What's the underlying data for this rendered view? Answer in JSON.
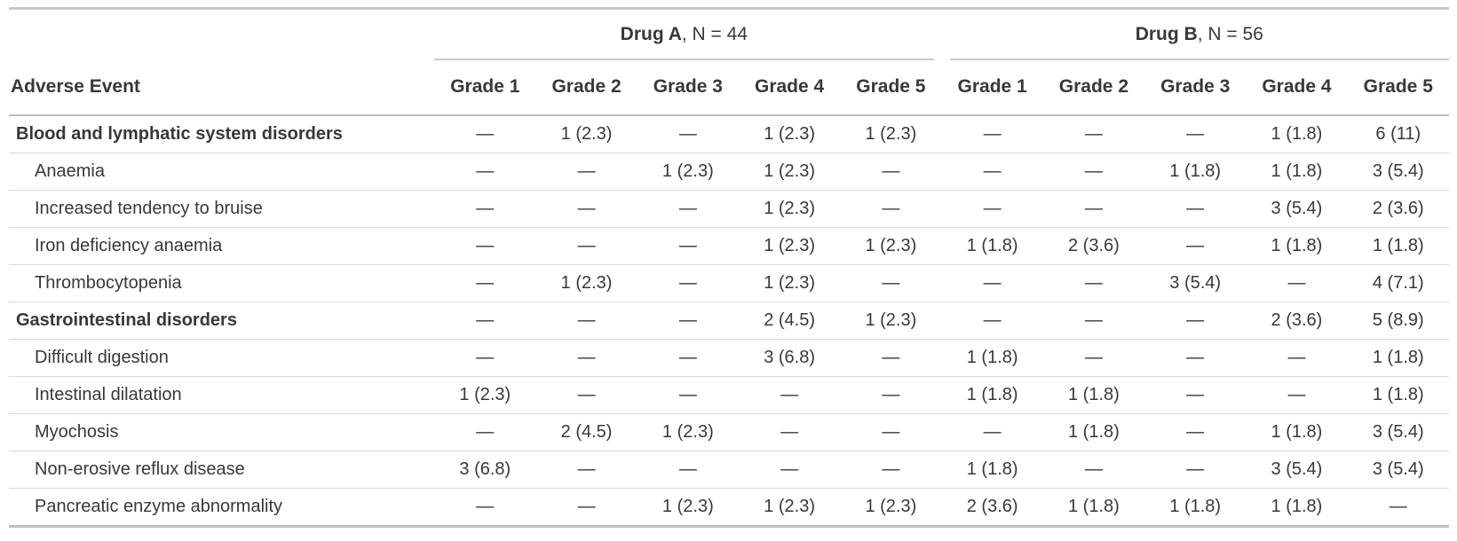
{
  "table": {
    "row_header_label": "Adverse Event",
    "spanners": [
      {
        "drug": "Drug A",
        "rest": ", N = 44"
      },
      {
        "drug": "Drug B",
        "rest": ", N = 56"
      }
    ],
    "grade_headers": [
      "Grade 1",
      "Grade 2",
      "Grade 3",
      "Grade 4",
      "Grade 5"
    ],
    "rows": [
      {
        "label": "Blood and lymphatic system disorders",
        "group": true,
        "drug_a": [
          "—",
          "1 (2.3)",
          "—",
          "1 (2.3)",
          "1 (2.3)"
        ],
        "drug_b": [
          "—",
          "—",
          "—",
          "1 (1.8)",
          "6 (11)"
        ]
      },
      {
        "label": "Anaemia",
        "group": false,
        "drug_a": [
          "—",
          "—",
          "1 (2.3)",
          "1 (2.3)",
          "—"
        ],
        "drug_b": [
          "—",
          "—",
          "1 (1.8)",
          "1 (1.8)",
          "3 (5.4)"
        ]
      },
      {
        "label": "Increased tendency to bruise",
        "group": false,
        "drug_a": [
          "—",
          "—",
          "—",
          "1 (2.3)",
          "—"
        ],
        "drug_b": [
          "—",
          "—",
          "—",
          "3 (5.4)",
          "2 (3.6)"
        ]
      },
      {
        "label": "Iron deficiency anaemia",
        "group": false,
        "drug_a": [
          "—",
          "—",
          "—",
          "1 (2.3)",
          "1 (2.3)"
        ],
        "drug_b": [
          "1 (1.8)",
          "2 (3.6)",
          "—",
          "1 (1.8)",
          "1 (1.8)"
        ]
      },
      {
        "label": "Thrombocytopenia",
        "group": false,
        "drug_a": [
          "—",
          "1 (2.3)",
          "—",
          "1 (2.3)",
          "—"
        ],
        "drug_b": [
          "—",
          "—",
          "3 (5.4)",
          "—",
          "4 (7.1)"
        ]
      },
      {
        "label": "Gastrointestinal disorders",
        "group": true,
        "drug_a": [
          "—",
          "—",
          "—",
          "2 (4.5)",
          "1 (2.3)"
        ],
        "drug_b": [
          "—",
          "—",
          "—",
          "2 (3.6)",
          "5 (8.9)"
        ]
      },
      {
        "label": "Difficult digestion",
        "group": false,
        "drug_a": [
          "—",
          "—",
          "—",
          "3 (6.8)",
          "—"
        ],
        "drug_b": [
          "1 (1.8)",
          "—",
          "—",
          "—",
          "1 (1.8)"
        ]
      },
      {
        "label": "Intestinal dilatation",
        "group": false,
        "drug_a": [
          "1 (2.3)",
          "—",
          "—",
          "—",
          "—"
        ],
        "drug_b": [
          "1 (1.8)",
          "1 (1.8)",
          "—",
          "—",
          "1 (1.8)"
        ]
      },
      {
        "label": "Myochosis",
        "group": false,
        "drug_a": [
          "—",
          "2 (4.5)",
          "1 (2.3)",
          "—",
          "—"
        ],
        "drug_b": [
          "—",
          "1 (1.8)",
          "—",
          "1 (1.8)",
          "3 (5.4)"
        ]
      },
      {
        "label": "Non-erosive reflux disease",
        "group": false,
        "drug_a": [
          "3 (6.8)",
          "—",
          "—",
          "—",
          "—"
        ],
        "drug_b": [
          "1 (1.8)",
          "—",
          "—",
          "3 (5.4)",
          "3 (5.4)"
        ]
      },
      {
        "label": "Pancreatic enzyme abnormality",
        "group": false,
        "drug_a": [
          "—",
          "—",
          "1 (2.3)",
          "1 (2.3)",
          "1 (2.3)"
        ],
        "drug_b": [
          "2 (3.6)",
          "1 (1.8)",
          "1 (1.8)",
          "1 (1.8)",
          "—"
        ]
      }
    ],
    "colors": {
      "text": "#383838",
      "rule_strong": "#c9c9c9",
      "rule_header": "#bdbdbd",
      "rule_row": "#dadada"
    }
  }
}
